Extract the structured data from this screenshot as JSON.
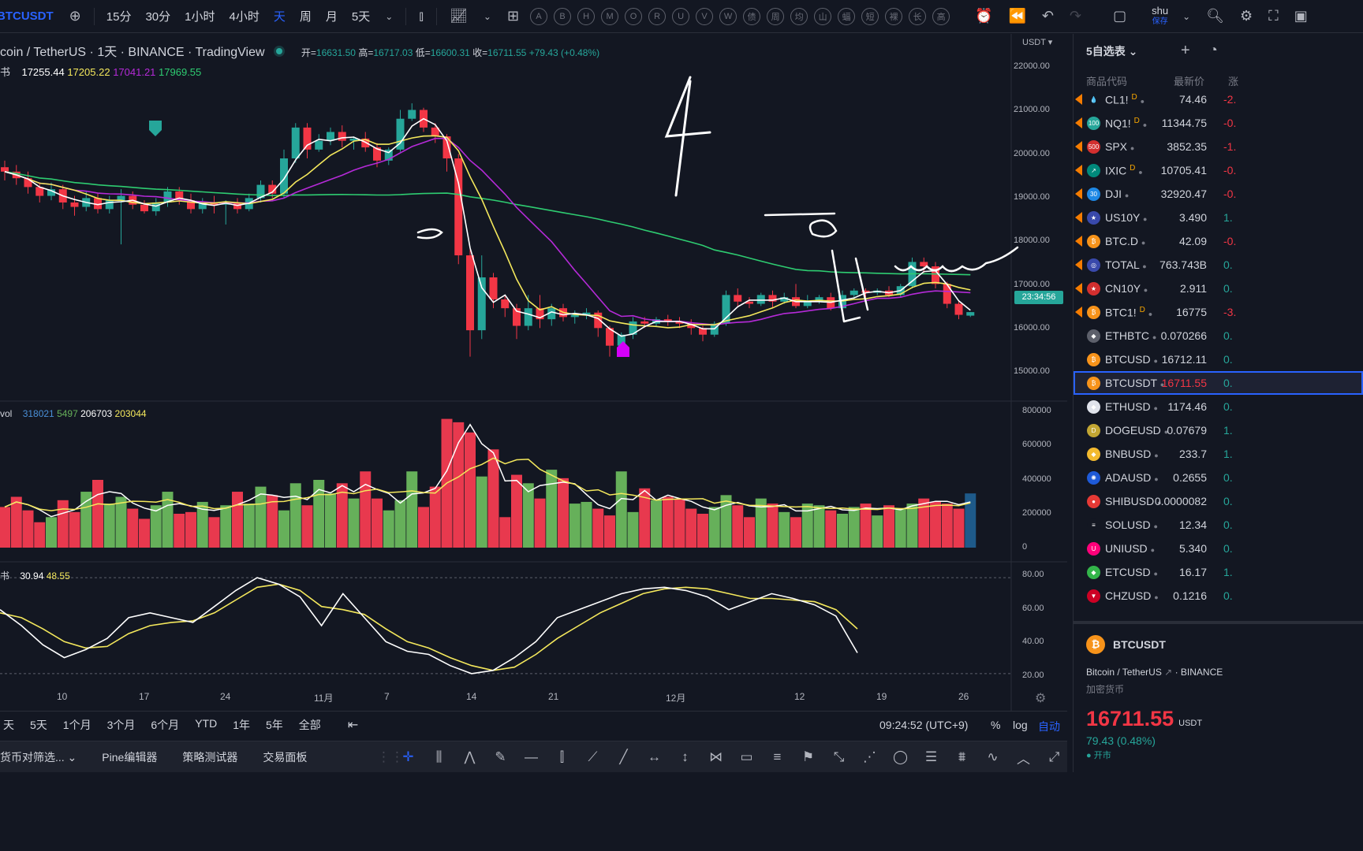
{
  "topbar": {
    "symbol": "BTCUSDT",
    "intervals": [
      "15分",
      "30分",
      "1小时",
      "4小时",
      "天",
      "周",
      "月",
      "5天"
    ],
    "active_interval": "天",
    "circle_tools": [
      "A",
      "B",
      "H",
      "M",
      "O",
      "R",
      "U",
      "V",
      "W",
      "债",
      "周",
      "均",
      "山",
      "蝠",
      "短",
      "裸",
      "长",
      "高"
    ],
    "user_name": "shu",
    "save_label": "保存"
  },
  "legend": {
    "title": "coin / TetherUS · 1天 · BINANCE · TradingView",
    "open_label": "开=",
    "open": "16631.50",
    "high_label": "高=",
    "high": "16717.03",
    "low_label": "低=",
    "low": "16600.31",
    "close_label": "收=",
    "close": "16711.55",
    "change": "+79.43 (+0.48%)",
    "ma_prefix": "书",
    "ma_values": [
      "17255.44",
      "17205.22",
      "17041.21",
      "17969.55"
    ],
    "vol_label": "vol",
    "vol_values": [
      "318021",
      "5497",
      "206703",
      "203044"
    ],
    "osc_prefix": "书",
    "osc_values": [
      "30.94",
      "48.55"
    ]
  },
  "price_axis": {
    "currency": "USDT ▾",
    "labels": [
      "22000.00",
      "21000.00",
      "20000.00",
      "19000.00",
      "18000.00",
      "17000.00",
      "16000.00",
      "15000.00"
    ],
    "current_timer": "23:34:56",
    "vol_labels": [
      "800000",
      "600000",
      "400000",
      "200000",
      "0"
    ],
    "osc_labels": [
      "80.00",
      "60.00",
      "40.00",
      "20.00"
    ]
  },
  "time_axis": [
    "10",
    "17",
    "24",
    "11月",
    "7",
    "14",
    "21",
    "12月",
    "12",
    "19",
    "26"
  ],
  "rangebar": {
    "ranges": [
      "天",
      "5天",
      "1个月",
      "3个月",
      "6个月",
      "YTD",
      "1年",
      "5年",
      "全部"
    ],
    "clock": "09:24:52 (UTC+9)",
    "pct": "%",
    "log": "log",
    "auto": "自动"
  },
  "panelbar": {
    "tabs": [
      "货币对筛选...",
      "Pine编辑器",
      "策略测试器",
      "交易面板"
    ]
  },
  "watchlist": {
    "title": "5自选表 ⌄",
    "col_symbol": "商品代码",
    "col_last": "最新价",
    "col_chg": "涨",
    "rows": [
      {
        "sym": "CL1!",
        "sup": "D",
        "last": "74.46",
        "chg": "-2.",
        "chgc": "red",
        "icon": "💧",
        "bg": "#131722"
      },
      {
        "sym": "NQ1!",
        "sup": "D",
        "last": "11344.75",
        "chg": "-0.",
        "chgc": "red",
        "icon": "100",
        "bg": "#26a69a"
      },
      {
        "sym": "SPX",
        "sup": "",
        "last": "3852.35",
        "chg": "-1.",
        "chgc": "red",
        "icon": "500",
        "bg": "#d32f2f"
      },
      {
        "sym": "IXIC",
        "sup": "D",
        "last": "10705.41",
        "chg": "-0.",
        "chgc": "red",
        "icon": "↗",
        "bg": "#00897b"
      },
      {
        "sym": "DJI",
        "sup": "",
        "last": "32920.47",
        "chg": "-0.",
        "chgc": "red",
        "icon": "30",
        "bg": "#1e88e5"
      },
      {
        "sym": "US10Y",
        "sup": "",
        "last": "3.490",
        "chg": "1.",
        "chgc": "green",
        "icon": "★",
        "bg": "#3949ab"
      },
      {
        "sym": "BTC.D",
        "sup": "",
        "last": "42.09",
        "chg": "-0.",
        "chgc": "red",
        "icon": "₿",
        "bg": "#f7931a"
      },
      {
        "sym": "TOTAL",
        "sup": "",
        "last": "763.743B",
        "chg": "0.",
        "chgc": "green",
        "icon": "◎",
        "bg": "#3949ab"
      },
      {
        "sym": "CN10Y",
        "sup": "",
        "last": "2.911",
        "chg": "0.",
        "chgc": "green",
        "icon": "★",
        "bg": "#d32f2f"
      },
      {
        "sym": "BTC1!",
        "sup": "D",
        "last": "16775",
        "chg": "-3.",
        "chgc": "red",
        "icon": "₿",
        "bg": "#f7931a"
      },
      {
        "sym": "ETHBTC",
        "sup": "",
        "last": "0.070266",
        "chg": "0.",
        "chgc": "green",
        "icon": "◆",
        "bg": "#5d606b"
      },
      {
        "sym": "BTCUSD",
        "sup": "",
        "last": "16712.11",
        "chg": "0.",
        "chgc": "green",
        "icon": "₿",
        "bg": "#f7931a"
      },
      {
        "sym": "BTCUSDT",
        "sup": "",
        "last": "16711.55",
        "chg": "0.",
        "chgc": "green",
        "icon": "₿",
        "bg": "#f7931a",
        "selected": true
      },
      {
        "sym": "ETHUSD",
        "sup": "",
        "last": "1174.46",
        "chg": "0.",
        "chgc": "green",
        "icon": "◆",
        "bg": "#e0e3eb"
      },
      {
        "sym": "DOGEUSD",
        "sup": "",
        "last": "0.07679",
        "chg": "1.",
        "chgc": "green",
        "icon": "D",
        "bg": "#c2a633"
      },
      {
        "sym": "BNBUSD",
        "sup": "",
        "last": "233.7",
        "chg": "1.",
        "chgc": "green",
        "icon": "◆",
        "bg": "#f3ba2f"
      },
      {
        "sym": "ADAUSD",
        "sup": "",
        "last": "0.2655",
        "chg": "0.",
        "chgc": "green",
        "icon": "✺",
        "bg": "#1e5ad8"
      },
      {
        "sym": "SHIBUSD",
        "sup": "",
        "last": "0.0000082",
        "chg": "0.",
        "chgc": "green",
        "icon": "●",
        "bg": "#e53935"
      },
      {
        "sym": "SOLUSD",
        "sup": "",
        "last": "12.34",
        "chg": "0.",
        "chgc": "green",
        "icon": "≡",
        "bg": "#131722"
      },
      {
        "sym": "UNIUSD",
        "sup": "",
        "last": "5.340",
        "chg": "0.",
        "chgc": "green",
        "icon": "U",
        "bg": "#ff007a"
      },
      {
        "sym": "ETCUSD",
        "sup": "",
        "last": "16.17",
        "chg": "1.",
        "chgc": "green",
        "icon": "◆",
        "bg": "#33b54a"
      },
      {
        "sym": "CHZUSD",
        "sup": "",
        "last": "0.1216",
        "chg": "0.",
        "chgc": "green",
        "icon": "▼",
        "bg": "#cd0124"
      }
    ]
  },
  "detail": {
    "symbol": "BTCUSDT",
    "name": "Bitcoin / TetherUS",
    "exchange": "BINANCE",
    "type": "加密货币",
    "price": "16711.55",
    "currency": "USDT",
    "change": "79.43 (0.48%)",
    "status": "● 开市"
  },
  "annotation_text": "4",
  "colors": {
    "up": "#26a69a",
    "down": "#f23645",
    "accent": "#2962ff",
    "volume_up": "#66b05a",
    "volume_down": "#e8394e",
    "ma_white": "#ffffff",
    "ma_yellow": "#f4e85c",
    "ma_purple": "#b52ad8",
    "ma_green": "#2ecc71"
  },
  "chart_data": {
    "type": "candlestick",
    "title": "coin / TetherUS · 1天 · BINANCE · TradingView",
    "ylim": [
      14800,
      22400
    ],
    "candles": [
      [
        20000,
        19900,
        20150,
        19700
      ],
      [
        19900,
        19750,
        20050,
        19600
      ],
      [
        19750,
        19550,
        19900,
        19400
      ],
      [
        19550,
        19350,
        19650,
        19200
      ],
      [
        19350,
        19500,
        19650,
        19250
      ],
      [
        19500,
        19200,
        19600,
        19050
      ],
      [
        19200,
        19100,
        19350,
        18900
      ],
      [
        19100,
        19300,
        19450,
        19000
      ],
      [
        19300,
        19050,
        19400,
        18950
      ],
      [
        19050,
        19250,
        19350,
        18950
      ],
      [
        19250,
        19350,
        19500,
        18250
      ],
      [
        19350,
        19150,
        19450,
        19050
      ],
      [
        19150,
        19000,
        19250,
        18950
      ],
      [
        19000,
        19200,
        19300,
        18900
      ],
      [
        19200,
        19450,
        19550,
        19100
      ],
      [
        19450,
        19250,
        19550,
        19150
      ],
      [
        19250,
        19050,
        19400,
        18950
      ],
      [
        19050,
        19200,
        19300,
        18950
      ],
      [
        19200,
        19150,
        19350,
        18950
      ],
      [
        19150,
        19200,
        19250,
        18700
      ],
      [
        19200,
        19050,
        19300,
        18950
      ],
      [
        19050,
        19300,
        19400,
        19000
      ],
      [
        19300,
        19600,
        19700,
        19200
      ],
      [
        19600,
        19400,
        19700,
        19300
      ],
      [
        19400,
        20200,
        20400,
        19300
      ],
      [
        20200,
        20900,
        21000,
        20100
      ],
      [
        20900,
        20400,
        21000,
        20200
      ],
      [
        20400,
        20600,
        20750,
        20350
      ],
      [
        20600,
        20800,
        20900,
        20500
      ],
      [
        20800,
        20600,
        20950,
        20450
      ],
      [
        20600,
        20650,
        20700,
        20400
      ],
      [
        20650,
        20450,
        20800,
        20350
      ],
      [
        20450,
        20150,
        20550,
        20000
      ],
      [
        20150,
        20400,
        20450,
        20050
      ],
      [
        20400,
        21100,
        21300,
        20350
      ],
      [
        21100,
        21300,
        21450,
        21050
      ],
      [
        21300,
        20900,
        21350,
        20800
      ],
      [
        20900,
        20700,
        21000,
        20550
      ],
      [
        20700,
        20200,
        20750,
        19900
      ],
      [
        20200,
        18000,
        20300,
        17800
      ],
      [
        18000,
        16300,
        18200,
        15700
      ],
      [
        16300,
        17500,
        18000,
        16100
      ],
      [
        17500,
        17000,
        17600,
        16800
      ],
      [
        17000,
        16800,
        17100,
        16600
      ],
      [
        16800,
        16400,
        16900,
        16100
      ],
      [
        16400,
        16800,
        17100,
        16300
      ],
      [
        16800,
        16550,
        17100,
        16350
      ],
      [
        16550,
        16800,
        16900,
        16400
      ],
      [
        16800,
        16600,
        16900,
        16500
      ],
      [
        16600,
        16650,
        16750,
        16450
      ],
      [
        16650,
        16700,
        16800,
        16550
      ],
      [
        16700,
        16350,
        16750,
        16150
      ],
      [
        16350,
        15950,
        16400,
        15700
      ],
      [
        15950,
        16200,
        16250,
        15850
      ],
      [
        16200,
        16500,
        16600,
        16100
      ],
      [
        16500,
        16450,
        16600,
        16350
      ],
      [
        16450,
        16550,
        16600,
        16400
      ],
      [
        16550,
        16500,
        16650,
        16400
      ],
      [
        16500,
        16450,
        16600,
        16350
      ],
      [
        16450,
        16350,
        16550,
        16200
      ],
      [
        16350,
        16200,
        16400,
        16050
      ],
      [
        16200,
        16450,
        16500,
        16150
      ],
      [
        16450,
        17100,
        17200,
        16400
      ],
      [
        17100,
        16950,
        17250,
        16850
      ],
      [
        16950,
        16900,
        17050,
        16800
      ],
      [
        16900,
        17100,
        17150,
        16850
      ],
      [
        17100,
        16950,
        17200,
        16800
      ],
      [
        16950,
        17050,
        17150,
        16900
      ],
      [
        17050,
        16850,
        17350,
        16800
      ],
      [
        16850,
        16950,
        17100,
        16800
      ],
      [
        16950,
        17050,
        17100,
        16900
      ],
      [
        17050,
        16800,
        17150,
        16750
      ],
      [
        16800,
        17100,
        17200,
        16750
      ],
      [
        17100,
        17200,
        17250,
        17000
      ],
      [
        17200,
        17150,
        17250,
        17050
      ],
      [
        17150,
        17200,
        17250,
        17100
      ],
      [
        17200,
        17100,
        17300,
        17050
      ],
      [
        17100,
        17300,
        17350,
        17050
      ],
      [
        17300,
        17850,
        17950,
        17250
      ],
      [
        17850,
        17750,
        17950,
        17600
      ],
      [
        17750,
        17350,
        17850,
        17250
      ],
      [
        17350,
        16900,
        17400,
        16800
      ],
      [
        16900,
        16650,
        16950,
        16550
      ],
      [
        16631.5,
        16711.55,
        16717.03,
        16600.31
      ]
    ],
    "volume_ylim": [
      0,
      800000
    ],
    "volumes": [
      240,
      300,
      220,
      150,
      180,
      280,
      210,
      330,
      400,
      260,
      300,
      230,
      170,
      250,
      330,
      200,
      210,
      270,
      180,
      250,
      330,
      260,
      360,
      310,
      220,
      380,
      250,
      400,
      320,
      380,
      290,
      450,
      290,
      220,
      280,
      450,
      240,
      360,
      760,
      740,
      680,
      420,
      580,
      180,
      430,
      380,
      290,
      460,
      410,
      260,
      270,
      230,
      190,
      450,
      210,
      350,
      280,
      300,
      290,
      230,
      200,
      240,
      310,
      250,
      180,
      290,
      260,
      210,
      180,
      260,
      250,
      220,
      200,
      240,
      260,
      190,
      250,
      230,
      260,
      290,
      270,
      260,
      230,
      320
    ],
    "oscillator_ylim": [
      15,
      85
    ],
    "osc_white": [
      60,
      50,
      38,
      30,
      35,
      42,
      55,
      58,
      55,
      52,
      62,
      72,
      80,
      76,
      68,
      50,
      70,
      55,
      40,
      34,
      32,
      25,
      20,
      22,
      30,
      40,
      55,
      60,
      65,
      70,
      73,
      74,
      72,
      68,
      60,
      65,
      70,
      67,
      63,
      56,
      33
    ],
    "osc_yellow": [
      58,
      55,
      48,
      40,
      36,
      37,
      45,
      50,
      52,
      53,
      58,
      66,
      74,
      76,
      72,
      62,
      60,
      57,
      48,
      40,
      36,
      30,
      25,
      22,
      24,
      32,
      42,
      50,
      58,
      64,
      70,
      73,
      74,
      73,
      70,
      67,
      67,
      66,
      65,
      60,
      48
    ]
  }
}
